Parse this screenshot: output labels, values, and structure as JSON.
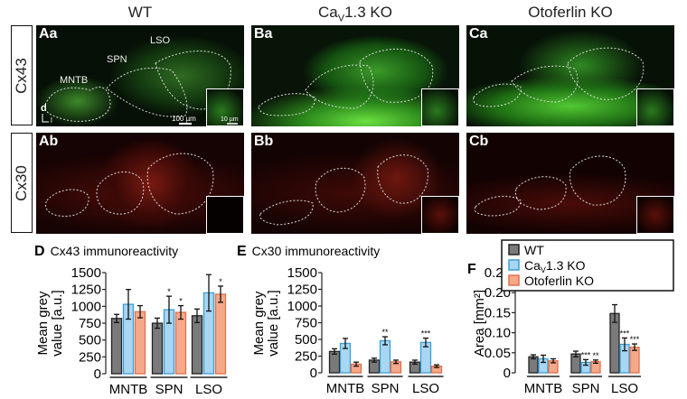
{
  "columns": [
    {
      "title": "WT"
    },
    {
      "title_parts": [
        "Ca",
        "V",
        "1.3 KO"
      ]
    },
    {
      "title": "Otoferlin KO"
    }
  ],
  "rows": [
    {
      "label": "Cx43"
    },
    {
      "label": "Cx30"
    }
  ],
  "panels": {
    "Aa": "Aa",
    "Ba": "Ba",
    "Ca": "Ca",
    "Ab": "Ab",
    "Bb": "Bb",
    "Cb": "Cb"
  },
  "region_labels": {
    "mntb": "MNTB",
    "spn": "SPN",
    "lso": "LSO"
  },
  "scale_bars": {
    "main": "100 µm",
    "inset": "10 µm"
  },
  "orientation": {
    "dorsal": "d",
    "lateral": "l"
  },
  "legend": {
    "items": [
      {
        "label": "WT",
        "color": "#7a7a7a",
        "stroke": "#222222"
      },
      {
        "label_parts": [
          "Ca",
          "V",
          "1.3 KO"
        ],
        "color": "#a9d6f2",
        "stroke": "#3a9fd8"
      },
      {
        "label": "Otoferlin KO",
        "color": "#f4a98a",
        "stroke": "#e0714a"
      }
    ]
  },
  "chart_data": [
    {
      "id": "D",
      "letter": "D",
      "type": "bar",
      "title": "Cx43 immunoreactivity",
      "ylabel": [
        "Mean grey",
        "value [a.u.]"
      ],
      "categories": [
        "MNTB",
        "SPN",
        "LSO"
      ],
      "ylim": [
        0,
        1500
      ],
      "yticks": [
        0,
        250,
        500,
        750,
        1000,
        1250,
        1500
      ],
      "ytick_labels": [
        "0",
        "250",
        "500",
        "750",
        "1000",
        "1250",
        "1500"
      ],
      "series": [
        {
          "name": "WT",
          "values": [
            820,
            750,
            860
          ],
          "errors": [
            60,
            75,
            100
          ],
          "sig": [
            "",
            "",
            ""
          ]
        },
        {
          "name": "Cav1.3 KO",
          "values": [
            1030,
            950,
            1200
          ],
          "errors": [
            220,
            200,
            270
          ],
          "sig": [
            "",
            "*",
            ""
          ]
        },
        {
          "name": "Otoferlin KO",
          "values": [
            920,
            910,
            1180
          ],
          "errors": [
            90,
            100,
            120
          ],
          "sig": [
            "",
            "*",
            "*"
          ]
        }
      ]
    },
    {
      "id": "E",
      "letter": "E",
      "type": "bar",
      "title": "Cx30 immunoreactivity",
      "ylabel": [
        "Mean grey",
        "value [a.u.]"
      ],
      "categories": [
        "MNTB",
        "SPN",
        "LSO"
      ],
      "ylim": [
        0,
        1500
      ],
      "yticks": [
        0,
        250,
        500,
        750,
        1000,
        1250,
        1500
      ],
      "ytick_labels": [
        "0",
        "250",
        "500",
        "750",
        "1000",
        "1250",
        "1500"
      ],
      "series": [
        {
          "name": "WT",
          "values": [
            320,
            190,
            160
          ],
          "errors": [
            40,
            30,
            30
          ],
          "sig": [
            "",
            "",
            ""
          ]
        },
        {
          "name": "Cav1.3 KO",
          "values": [
            440,
            480,
            455
          ],
          "errors": [
            75,
            60,
            65
          ],
          "sig": [
            "",
            "**",
            "***"
          ]
        },
        {
          "name": "Otoferlin KO",
          "values": [
            130,
            165,
            100
          ],
          "errors": [
            30,
            25,
            20
          ],
          "sig": [
            "",
            "",
            ""
          ]
        }
      ]
    },
    {
      "id": "F",
      "letter": "F",
      "type": "bar",
      "title": "",
      "ylabel": [
        "Area [mm²]"
      ],
      "categories": [
        "MNTB",
        "SPN",
        "LSO"
      ],
      "ylim": [
        0,
        0.25
      ],
      "yticks": [
        0,
        0.05,
        0.1,
        0.15,
        0.2,
        0.25
      ],
      "ytick_labels": [
        "0",
        "0.05",
        "0.10",
        "0.15",
        "0.20",
        "0.25"
      ],
      "series": [
        {
          "name": "WT",
          "values": [
            0.04,
            0.047,
            0.148
          ],
          "errors": [
            0.005,
            0.007,
            0.022
          ],
          "sig": [
            "",
            "",
            ""
          ]
        },
        {
          "name": "Cav1.3 KO",
          "values": [
            0.035,
            0.026,
            0.071
          ],
          "errors": [
            0.009,
            0.007,
            0.016
          ],
          "sig": [
            "",
            "***",
            "***"
          ]
        },
        {
          "name": "Otoferlin KO",
          "values": [
            0.03,
            0.028,
            0.064
          ],
          "errors": [
            0.005,
            0.004,
            0.008
          ],
          "sig": [
            "",
            "**",
            "***"
          ]
        }
      ]
    }
  ]
}
